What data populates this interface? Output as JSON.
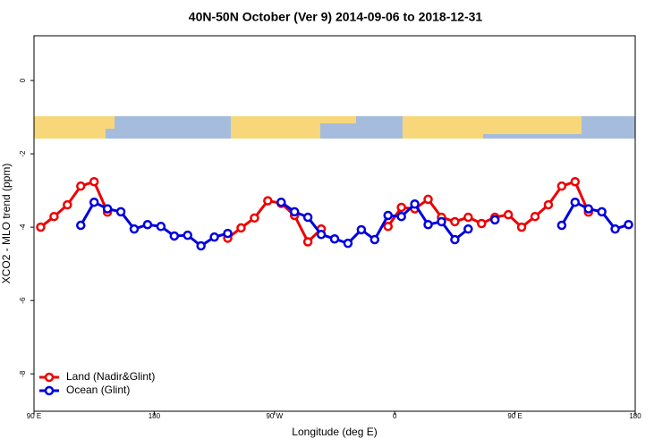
{
  "chart_data": {
    "type": "line",
    "title": "40N-50N October (Ver 9)   2014-09-06 to 2018-12-31",
    "xlabel": "Longitude (deg E)",
    "ylabel": "XCO2 - MLO trend (ppm)",
    "x": [
      95,
      105,
      115,
      125,
      135,
      145,
      155,
      165,
      175,
      185,
      195,
      205,
      215,
      225,
      235,
      245,
      255,
      265,
      275,
      285,
      295,
      305,
      315,
      325,
      335,
      345,
      355,
      365,
      375,
      385,
      395,
      405,
      415,
      425,
      435,
      445,
      455,
      465,
      475,
      485,
      495,
      505,
      515,
      525,
      535
    ],
    "series": [
      {
        "name": "Land (Nadir&Glint)",
        "color": "#ee0000",
        "values": [
          -4.0,
          -3.71,
          -3.39,
          -2.88,
          -2.76,
          -3.59,
          null,
          null,
          null,
          null,
          null,
          null,
          null,
          null,
          -4.3,
          -4.02,
          -3.75,
          -3.28,
          -3.35,
          -3.68,
          -4.4,
          -4.05,
          null,
          null,
          null,
          null,
          -3.98,
          -3.46,
          -3.5,
          -3.24,
          -3.73,
          -3.85,
          -3.73,
          -3.9,
          -3.73,
          -3.66,
          -4.0,
          -3.71,
          -3.39,
          -2.88,
          -2.76,
          -3.59,
          null,
          null,
          null
        ]
      },
      {
        "name": "Ocean (Glint)",
        "color": "#0000dd",
        "values": [
          null,
          null,
          null,
          -3.95,
          -3.32,
          -3.5,
          -3.58,
          -4.05,
          -3.93,
          -3.98,
          -4.24,
          -4.22,
          -4.51,
          -4.27,
          -4.17,
          null,
          null,
          null,
          -3.32,
          -3.58,
          -3.73,
          -4.2,
          -4.32,
          -4.44,
          -4.07,
          -4.34,
          -3.68,
          -3.71,
          -3.37,
          -3.93,
          -3.85,
          -4.34,
          -4.05,
          null,
          -3.8,
          null,
          null,
          null,
          null,
          -3.95,
          -3.32,
          -3.5,
          -3.58,
          -4.05,
          -3.93
        ]
      }
    ],
    "xlim": [
      90,
      540
    ],
    "xticks": [
      {
        "value": 90,
        "label": "90 E"
      },
      180,
      {
        "value": 270,
        "label": "90 W"
      },
      {
        "value": 360,
        "label": "0"
      },
      {
        "value": 450,
        "label": "90 E"
      },
      {
        "value": 540,
        "label": "180"
      }
    ],
    "ylim": [
      -9.02,
      1.22
    ],
    "yticks": [
      0,
      -2,
      -4,
      -6,
      -8
    ],
    "legend": "bottom-left"
  }
}
